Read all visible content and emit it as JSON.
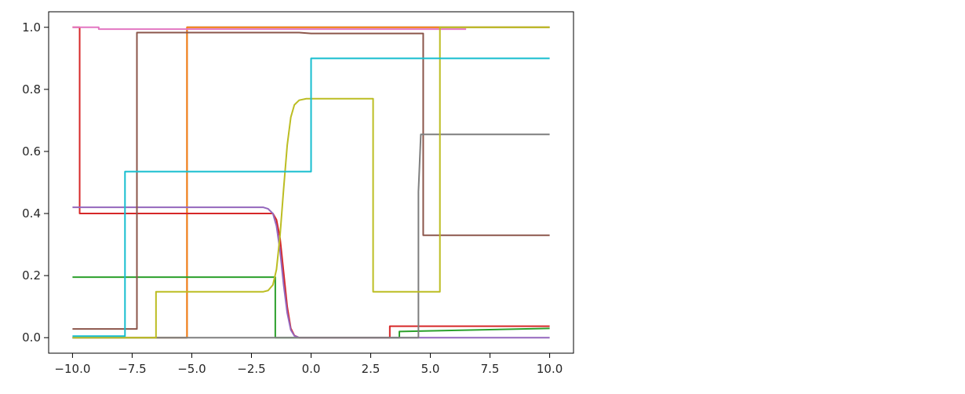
{
  "chart_data": {
    "type": "line",
    "title": "",
    "xlabel": "",
    "ylabel": "",
    "xlim": [
      -11.0,
      11.0
    ],
    "ylim": [
      -0.05,
      1.05
    ],
    "xticks": [
      -10.0,
      -7.5,
      -5.0,
      -2.5,
      0.0,
      2.5,
      5.0,
      7.5,
      10.0
    ],
    "xtick_labels": [
      "−10.0",
      "−7.5",
      "−5.0",
      "−2.5",
      "0.0",
      "2.5",
      "5.0",
      "7.5",
      "10.0"
    ],
    "yticks": [
      0.0,
      0.2,
      0.4,
      0.6,
      0.8,
      1.0
    ],
    "ytick_labels": [
      "0.0",
      "0.2",
      "0.4",
      "0.6",
      "0.8",
      "1.0"
    ],
    "grid": false,
    "legend": "none",
    "series": [
      {
        "color": "#1f77b4",
        "points": [
          [
            -10,
            0.0
          ],
          [
            -5.2,
            0.0
          ],
          [
            -5.2,
            0.999
          ],
          [
            -5.2,
            1.0
          ],
          [
            10,
            1.0
          ]
        ]
      },
      {
        "color": "#ff7f0e",
        "points": [
          [
            -10,
            0.0
          ],
          [
            -5.2,
            0.0
          ],
          [
            -5.2,
            1.0
          ],
          [
            10,
            1.0
          ]
        ]
      },
      {
        "color": "#2ca02c",
        "points": [
          [
            -10,
            0.195
          ],
          [
            -1.5,
            0.195
          ],
          [
            -1.5,
            0.0
          ],
          [
            3.7,
            0.0
          ],
          [
            3.7,
            0.02
          ],
          [
            10,
            0.03
          ]
        ]
      },
      {
        "color": "#d62728",
        "points": [
          [
            -10,
            1.0
          ],
          [
            -9.7,
            1.0
          ],
          [
            -9.7,
            0.4
          ],
          [
            -1.6,
            0.4
          ],
          [
            -1.45,
            0.38
          ],
          [
            -1.3,
            0.32
          ],
          [
            -1.15,
            0.21
          ],
          [
            -1.0,
            0.1
          ],
          [
            -0.85,
            0.03
          ],
          [
            -0.7,
            0.007
          ],
          [
            -0.5,
            0.0
          ],
          [
            3.3,
            0.0
          ],
          [
            3.3,
            0.037
          ],
          [
            10,
            0.037
          ]
        ]
      },
      {
        "color": "#9467bd",
        "points": [
          [
            -10,
            0.42
          ],
          [
            -2.0,
            0.42
          ],
          [
            -1.8,
            0.415
          ],
          [
            -1.6,
            0.4
          ],
          [
            -1.45,
            0.36
          ],
          [
            -1.3,
            0.28
          ],
          [
            -1.15,
            0.17
          ],
          [
            -1.0,
            0.08
          ],
          [
            -0.85,
            0.025
          ],
          [
            -0.7,
            0.006
          ],
          [
            -0.5,
            0.0
          ],
          [
            10,
            0.0
          ]
        ]
      },
      {
        "color": "#8c564b",
        "points": [
          [
            -10,
            0.028
          ],
          [
            -7.3,
            0.028
          ],
          [
            -7.3,
            0.983
          ],
          [
            -0.5,
            0.983
          ],
          [
            0.0,
            0.98
          ],
          [
            4.7,
            0.98
          ],
          [
            4.7,
            0.33
          ],
          [
            10,
            0.33
          ]
        ]
      },
      {
        "color": "#e377c2",
        "points": [
          [
            -10,
            1.0
          ],
          [
            -8.9,
            1.0
          ],
          [
            -8.9,
            0.994
          ],
          [
            -5.2,
            0.994
          ],
          [
            6.5,
            0.994
          ]
        ]
      },
      {
        "color": "#7f7f7f",
        "points": [
          [
            -10,
            0.0
          ],
          [
            4.5,
            0.0
          ],
          [
            4.5,
            0.47
          ],
          [
            4.6,
            0.655
          ],
          [
            10,
            0.655
          ]
        ]
      },
      {
        "color": "#bcbd22",
        "points": [
          [
            -10,
            0.0
          ],
          [
            -6.5,
            0.0
          ],
          [
            -6.5,
            0.148
          ],
          [
            -2.0,
            0.148
          ],
          [
            -1.8,
            0.152
          ],
          [
            -1.6,
            0.17
          ],
          [
            -1.45,
            0.22
          ],
          [
            -1.3,
            0.33
          ],
          [
            -1.15,
            0.48
          ],
          [
            -1.0,
            0.62
          ],
          [
            -0.85,
            0.71
          ],
          [
            -0.7,
            0.75
          ],
          [
            -0.5,
            0.765
          ],
          [
            -0.2,
            0.77
          ],
          [
            2.6,
            0.77
          ],
          [
            2.6,
            0.148
          ],
          [
            5.4,
            0.148
          ],
          [
            5.4,
            1.0
          ],
          [
            10,
            1.0
          ]
        ]
      },
      {
        "color": "#17becf",
        "points": [
          [
            -10,
            0.005
          ],
          [
            -7.8,
            0.005
          ],
          [
            -7.8,
            0.535
          ],
          [
            0.0,
            0.535
          ],
          [
            0.0,
            0.9
          ],
          [
            10,
            0.9
          ]
        ]
      }
    ]
  }
}
